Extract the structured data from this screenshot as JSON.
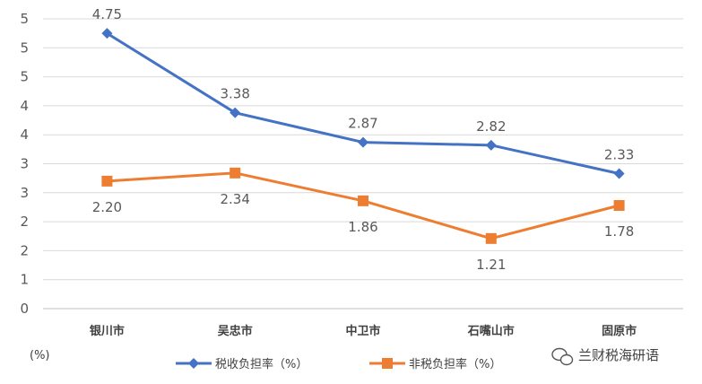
{
  "chart_data": {
    "type": "line",
    "categories": [
      "银川市",
      "吴忠市",
      "中卫市",
      "石嘴山市",
      "固原市"
    ],
    "y_tick_labels": [
      "0",
      "1",
      "2",
      "2",
      "3",
      "3",
      "4",
      "4",
      "5",
      "5"
    ],
    "y_unit": "(%)",
    "series": [
      {
        "name": "税收负担率（%）",
        "values": [
          4.75,
          3.38,
          2.87,
          2.82,
          2.33
        ],
        "labels": [
          "4.75",
          "3.38",
          "2.87",
          "2.82",
          "2.33"
        ],
        "label_position": "above",
        "color": "#4472C4",
        "marker": "diamond"
      },
      {
        "name": "非税负担率（%）",
        "values": [
          2.2,
          2.34,
          1.86,
          1.21,
          1.78
        ],
        "labels": [
          "2.20",
          "2.34",
          "1.86",
          "1.21",
          "1.78"
        ],
        "label_position": "below",
        "color": "#ED7D31",
        "marker": "square"
      }
    ],
    "ylim": [
      0,
      5
    ],
    "grid": true,
    "legend_position": "bottom"
  },
  "watermark": {
    "text": "兰财税海研语",
    "icon": "wechat-icon"
  }
}
